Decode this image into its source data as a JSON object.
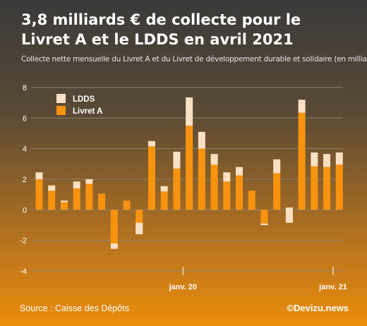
{
  "title": "3,8 milliards € de collecte pour le Livret A et le LDDS en avril 2021",
  "subtitle": "Collecte nette mensuelle du Livret A et du Livret de développement durable et solidaire (en milliards €)",
  "source": "Source : Caisse des Dépôts",
  "brand": "©Devizu.news",
  "colors": {
    "livret_a": "#f7930f",
    "ldds": "#fbe0c4",
    "grid": "#8a8275",
    "text": "#ffffff"
  },
  "chart_data": {
    "type": "bar",
    "stacked": true,
    "title": "3,8 milliards € de collecte pour le Livret A et le LDDS en avril 2021",
    "subtitle": "Collecte nette mensuelle du Livret A et du Livret de développement durable et solidaire (en milliards €)",
    "xlabel": "",
    "ylabel": "",
    "ylim": [
      -4,
      8
    ],
    "yticks": [
      -4,
      -2,
      0,
      2,
      4,
      6,
      8
    ],
    "grid": true,
    "legend_position": "top-left",
    "x_tick_labels": [
      {
        "label": "janv. 20",
        "index": 12
      },
      {
        "label": "janv. 21",
        "index": 24
      }
    ],
    "series": [
      {
        "name": "Livret A",
        "color": "#f7930f",
        "values": [
          2.0,
          1.25,
          0.5,
          1.4,
          1.7,
          1.05,
          -2.2,
          0.6,
          -1.6,
          4.15,
          1.2,
          2.7,
          5.5,
          4.0,
          2.95,
          1.85,
          2.25,
          1.25,
          -0.9,
          2.4,
          -0.85,
          6.35,
          2.85,
          2.8,
          2.95
        ]
      },
      {
        "name": "LDDS",
        "color": "#fbe0c4",
        "values": [
          0.45,
          0.35,
          0.1,
          0.45,
          0.3,
          0.0,
          -0.35,
          0.0,
          0.75,
          0.35,
          0.35,
          1.1,
          1.85,
          1.1,
          0.7,
          0.6,
          0.55,
          0.0,
          -0.1,
          0.9,
          1.0,
          0.85,
          0.9,
          0.85,
          0.8
        ]
      }
    ]
  }
}
